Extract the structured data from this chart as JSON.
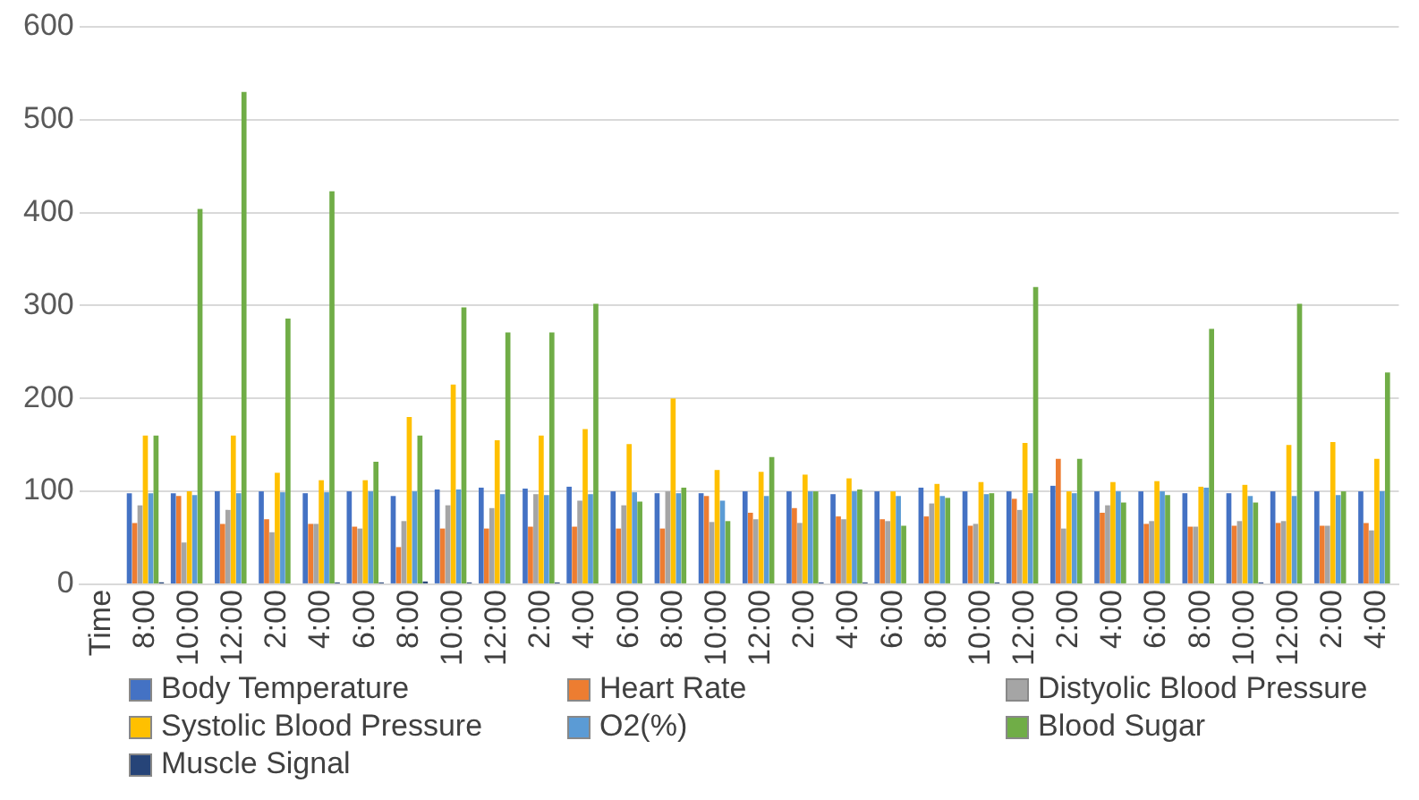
{
  "chart_data": {
    "type": "bar",
    "categories": [
      "Time",
      "8:00",
      "10:00",
      "12:00",
      "2:00",
      "4:00",
      "6:00",
      "8:00",
      "10:00",
      "12:00",
      "2:00",
      "4:00",
      "6:00",
      "8:00",
      "10:00",
      "12:00",
      "2:00",
      "4:00",
      "6:00",
      "8:00",
      "10:00",
      "12:00",
      "2:00",
      "4:00",
      "6:00",
      "8:00",
      "10:00",
      "12:00",
      "2:00",
      "4:00"
    ],
    "series": [
      {
        "name": "Body Temperature",
        "color": "#4472c4",
        "values": [
          null,
          98,
          98,
          100,
          100,
          98,
          100,
          95,
          102,
          104,
          103,
          105,
          100,
          98,
          98,
          100,
          100,
          97,
          100,
          104,
          100,
          100,
          106,
          100,
          100,
          98,
          98,
          100,
          100,
          100
        ]
      },
      {
        "name": "Heart Rate",
        "color": "#ed7d31",
        "values": [
          null,
          66,
          95,
          65,
          70,
          65,
          62,
          40,
          60,
          60,
          62,
          62,
          60,
          60,
          95,
          77,
          82,
          73,
          70,
          73,
          63,
          92,
          135,
          77,
          65,
          62,
          63,
          66,
          63,
          66
        ]
      },
      {
        "name": "Distyolic Blood Pressure",
        "color": "#a5a5a5",
        "values": [
          null,
          85,
          45,
          80,
          56,
          65,
          60,
          68,
          85,
          82,
          97,
          90,
          85,
          100,
          67,
          70,
          66,
          70,
          68,
          87,
          65,
          80,
          60,
          85,
          68,
          62,
          68,
          68,
          63,
          58
        ]
      },
      {
        "name": "Systolic Blood Pressure",
        "color": "#ffc000",
        "values": [
          null,
          160,
          100,
          160,
          120,
          112,
          112,
          180,
          215,
          155,
          160,
          167,
          151,
          200,
          123,
          121,
          118,
          114,
          100,
          108,
          110,
          152,
          100,
          110,
          111,
          105,
          107,
          150,
          153,
          135
        ]
      },
      {
        "name": "O2(%)",
        "color": "#5b9bd5",
        "values": [
          null,
          98,
          96,
          98,
          99,
          99,
          100,
          100,
          102,
          97,
          96,
          97,
          99,
          98,
          90,
          95,
          100,
          100,
          95,
          95,
          97,
          98,
          98,
          100,
          100,
          104,
          95,
          95,
          96,
          100
        ]
      },
      {
        "name": "Blood Sugar",
        "color": "#70ad47",
        "values": [
          null,
          160,
          404,
          530,
          286,
          423,
          132,
          160,
          298,
          271,
          271,
          302,
          89,
          104,
          68,
          137,
          100,
          102,
          63,
          93,
          98,
          320,
          135,
          88,
          96,
          275,
          88,
          302,
          100,
          228
        ]
      },
      {
        "name": "Muscle Signal",
        "color": "#264478",
        "values": [
          null,
          2,
          0,
          0,
          0,
          2,
          2,
          3,
          2,
          0,
          2,
          0,
          0,
          0,
          0,
          0,
          2,
          2,
          0,
          0,
          2,
          0,
          0,
          0,
          0,
          0,
          2,
          0,
          0,
          0
        ]
      }
    ],
    "ylim": [
      0,
      600
    ],
    "yticks": [
      0,
      100,
      200,
      300,
      400,
      500,
      600
    ],
    "grid": "y",
    "legend": "bottom"
  }
}
